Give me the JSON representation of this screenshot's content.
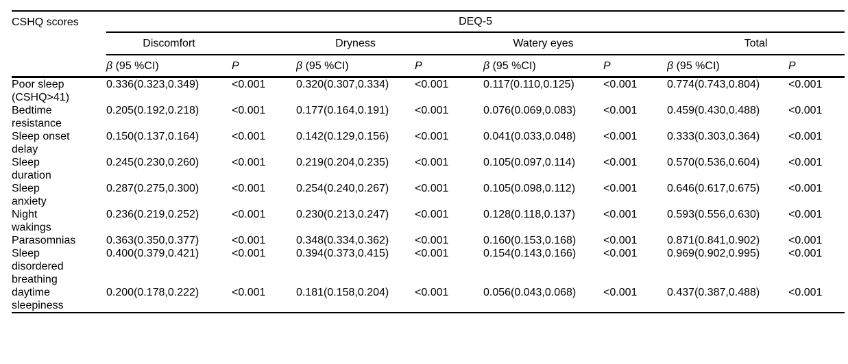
{
  "table": {
    "corner_label": "CSHQ scores",
    "span_header": "DEQ-5",
    "groups": [
      "Discomfort",
      "Dryness",
      "Watery eyes",
      "Total"
    ],
    "subheaders": {
      "beta_symbol": "β",
      "beta_ci_suffix": " (95 %CI)",
      "p": "P"
    },
    "rows": [
      {
        "label": "Poor sleep\n(CSHQ>41)",
        "cells": [
          "0.336(0.323,0.349)",
          "<0.001",
          "0.320(0.307,0.334)",
          "<0.001",
          "0.117(0.110,0.125)",
          "<0.001",
          "0.774(0.743,0.804)",
          "<0.001"
        ]
      },
      {
        "label": "Bedtime\nresistance",
        "cells": [
          "0.205(0.192,0.218)",
          "<0.001",
          "0.177(0.164,0.191)",
          "<0.001",
          "0.076(0.069,0.083)",
          "<0.001",
          "0.459(0.430,0.488)",
          "<0.001"
        ]
      },
      {
        "label": "Sleep onset\ndelay",
        "cells": [
          "0.150(0.137,0.164)",
          "<0.001",
          "0.142(0.129,0.156)",
          "<0.001",
          "0.041(0.033,0.048)",
          "<0.001",
          "0.333(0.303,0.364)",
          "<0.001"
        ]
      },
      {
        "label": "Sleep\nduration",
        "cells": [
          "0.245(0.230,0.260)",
          "<0.001",
          "0.219(0.204,0.235)",
          "<0.001",
          "0.105(0.097,0.114)",
          "<0.001",
          "0.570(0.536,0.604)",
          "<0.001"
        ]
      },
      {
        "label": "Sleep\nanxiety",
        "cells": [
          "0.287(0.275,0.300)",
          "<0.001",
          "0.254(0.240,0.267)",
          "<0.001",
          "0.105(0.098,0.112)",
          "<0.001",
          "0.646(0.617,0.675)",
          "<0.001"
        ]
      },
      {
        "label": "Night\nwakings",
        "cells": [
          "0.236(0.219,0.252)",
          "<0.001",
          "0.230(0.213,0.247)",
          "<0.001",
          "0.128(0.118,0.137)",
          "<0.001",
          "0.593(0.556,0.630)",
          "<0.001"
        ]
      },
      {
        "label": "Parasomnias",
        "cells": [
          "0.363(0.350,0.377)",
          "<0.001",
          "0.348(0.334,0.362)",
          "<0.001",
          "0.160(0.153,0.168)",
          "<0.001",
          "0.871(0.841,0.902)",
          "<0.001"
        ]
      },
      {
        "label": "Sleep\ndisordered\nbreathing",
        "cells": [
          "0.400(0.379,0.421)",
          "<0.001",
          "0.394(0.373,0.415)",
          "<0.001",
          "0.154(0.143,0.166)",
          "<0.001",
          "0.969(0.902,0.995)",
          "<0.001"
        ]
      },
      {
        "label": "daytime\nsleepiness",
        "cells": [
          "0.200(0.178,0.222)",
          "<0.001",
          "0.181(0.158,0.204)",
          "<0.001",
          "0.056(0.043,0.068)",
          "<0.001",
          "0.437(0.387,0.488)",
          "<0.001"
        ]
      }
    ]
  },
  "colors": {
    "background": "#ffffff",
    "text": "#000000",
    "rule": "#000000"
  }
}
